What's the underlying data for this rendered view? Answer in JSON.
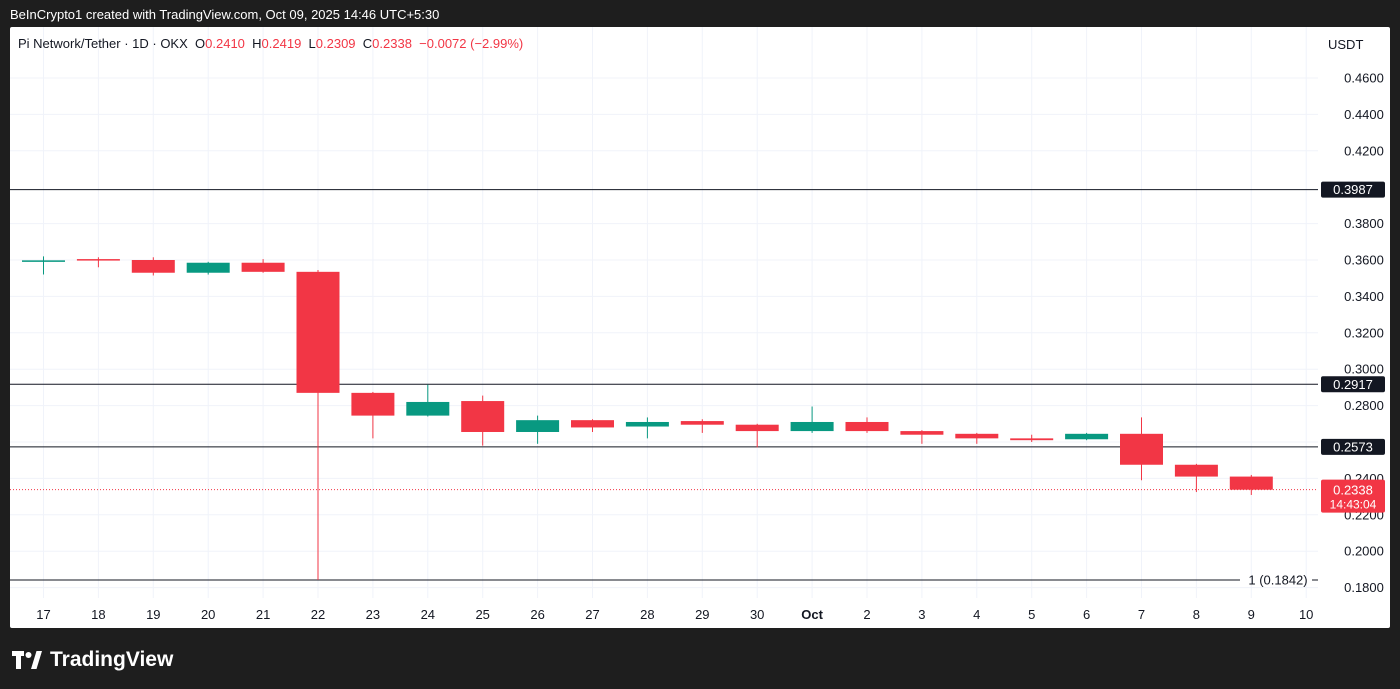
{
  "header": {
    "caption": "BeInCrypto1 created with TradingView.com, Oct 09, 2025 14:46 UTC+5:30"
  },
  "legend": {
    "symbol": "Pi Network/Tether · 1D · OKX",
    "o_label": "O",
    "o_value": "0.2410",
    "h_label": "H",
    "h_value": "0.2419",
    "l_label": "L",
    "l_value": "0.2309",
    "c_label": "C",
    "c_value": "0.2338",
    "change": "−0.0072 (−2.99%)"
  },
  "currency_label": "USDT",
  "footer": {
    "logo_text": "TradingView"
  },
  "colors": {
    "up": "#089981",
    "down": "#f23645",
    "level_line": "#131722",
    "grid": "#f0f3fa",
    "axis_text": "#131722"
  },
  "icons": {
    "footer": "tradingview-logo-icon"
  },
  "chart_data": {
    "type": "candlestick",
    "title": "",
    "xlabel": "",
    "ylabel": "",
    "grid": true,
    "ylim": [
      0.17,
      0.48
    ],
    "y_ticks": [
      "0.4600",
      "0.4400",
      "0.4200",
      "0.3800",
      "0.3600",
      "0.3400",
      "0.3200",
      "0.3000",
      "0.2800",
      "0.2400",
      "0.2200",
      "0.2000",
      "0.1800"
    ],
    "x_ticks": [
      "17",
      "18",
      "19",
      "20",
      "21",
      "22",
      "23",
      "24",
      "25",
      "26",
      "27",
      "28",
      "29",
      "30",
      "Oct",
      "2",
      "3",
      "4",
      "5",
      "6",
      "7",
      "8",
      "9",
      "10"
    ],
    "candles": [
      {
        "date": "Sep 17",
        "open": 0.3595,
        "high": 0.362,
        "low": 0.352,
        "close": 0.3598
      },
      {
        "date": "Sep 18",
        "open": 0.3605,
        "high": 0.3615,
        "low": 0.356,
        "close": 0.36
      },
      {
        "date": "Sep 19",
        "open": 0.36,
        "high": 0.3615,
        "low": 0.3515,
        "close": 0.353
      },
      {
        "date": "Sep 20",
        "open": 0.353,
        "high": 0.359,
        "low": 0.352,
        "close": 0.3585
      },
      {
        "date": "Sep 21",
        "open": 0.3585,
        "high": 0.3605,
        "low": 0.353,
        "close": 0.3535
      },
      {
        "date": "Sep 22",
        "open": 0.3535,
        "high": 0.3545,
        "low": 0.1842,
        "close": 0.287
      },
      {
        "date": "Sep 23",
        "open": 0.287,
        "high": 0.2875,
        "low": 0.262,
        "close": 0.2745
      },
      {
        "date": "Sep 24",
        "open": 0.2745,
        "high": 0.2915,
        "low": 0.274,
        "close": 0.282
      },
      {
        "date": "Sep 25",
        "open": 0.2825,
        "high": 0.2855,
        "low": 0.258,
        "close": 0.2655
      },
      {
        "date": "Sep 26",
        "open": 0.2655,
        "high": 0.2745,
        "low": 0.259,
        "close": 0.272
      },
      {
        "date": "Sep 27",
        "open": 0.272,
        "high": 0.2725,
        "low": 0.2655,
        "close": 0.268
      },
      {
        "date": "Sep 28",
        "open": 0.2685,
        "high": 0.2735,
        "low": 0.262,
        "close": 0.271
      },
      {
        "date": "Sep 29",
        "open": 0.2715,
        "high": 0.2725,
        "low": 0.265,
        "close": 0.2695
      },
      {
        "date": "Sep 30",
        "open": 0.2695,
        "high": 0.27,
        "low": 0.257,
        "close": 0.266
      },
      {
        "date": "Oct 1",
        "open": 0.266,
        "high": 0.2795,
        "low": 0.265,
        "close": 0.271
      },
      {
        "date": "Oct 2",
        "open": 0.271,
        "high": 0.2735,
        "low": 0.265,
        "close": 0.266
      },
      {
        "date": "Oct 3",
        "open": 0.266,
        "high": 0.2665,
        "low": 0.259,
        "close": 0.264
      },
      {
        "date": "Oct 4",
        "open": 0.2645,
        "high": 0.265,
        "low": 0.259,
        "close": 0.262
      },
      {
        "date": "Oct 5",
        "open": 0.262,
        "high": 0.264,
        "low": 0.26,
        "close": 0.261
      },
      {
        "date": "Oct 6",
        "open": 0.2615,
        "high": 0.265,
        "low": 0.261,
        "close": 0.2645
      },
      {
        "date": "Oct 7",
        "open": 0.2645,
        "high": 0.2735,
        "low": 0.239,
        "close": 0.2475
      },
      {
        "date": "Oct 8",
        "open": 0.2475,
        "high": 0.248,
        "low": 0.2325,
        "close": 0.241
      },
      {
        "date": "Oct 9",
        "open": 0.241,
        "high": 0.2419,
        "low": 0.2309,
        "close": 0.2338
      }
    ],
    "levels": [
      {
        "value": 0.3987,
        "label": "0.3987"
      },
      {
        "value": 0.2917,
        "label": "0.2917"
      },
      {
        "value": 0.2573,
        "label": "0.2573"
      }
    ],
    "low_marker": {
      "value": 0.1842,
      "label": "1 (0.1842)"
    },
    "current_price": {
      "value": 0.2338,
      "label": "0.2338",
      "countdown": "14:43:04"
    }
  }
}
